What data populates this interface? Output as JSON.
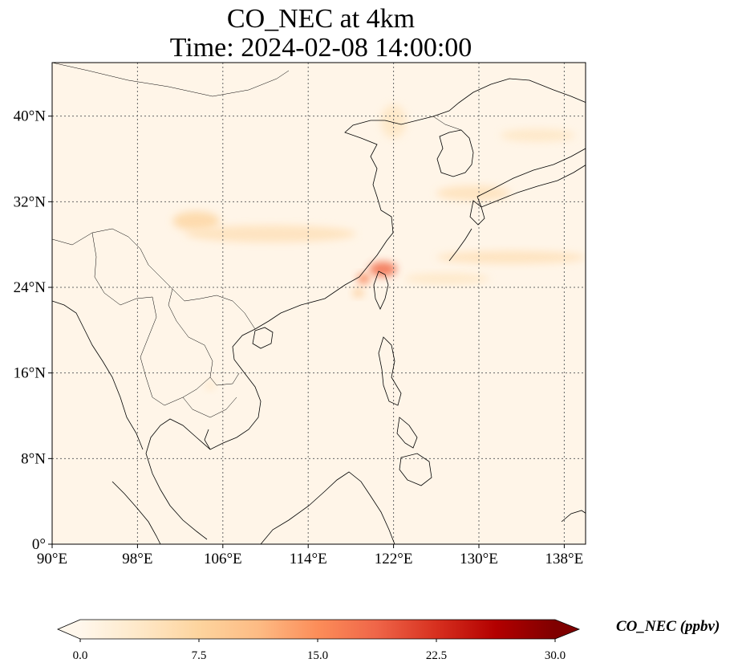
{
  "title": {
    "line1": "CO_NEC at 4km",
    "line2": "Time: 2024-02-08 14:00:00"
  },
  "map": {
    "extent": {
      "lon_min": 90,
      "lon_max": 140,
      "lat_min": 0,
      "lat_max": 45
    },
    "lon_ticks": [
      90,
      98,
      106,
      114,
      122,
      130,
      138
    ],
    "lon_tick_labels": [
      "90°E",
      "98°E",
      "106°E",
      "114°E",
      "122°E",
      "130°E",
      "138°E"
    ],
    "lat_ticks": [
      0,
      8,
      16,
      24,
      32,
      40
    ],
    "lat_tick_labels": [
      "0°",
      "8°N",
      "16°N",
      "24°N",
      "32°N",
      "40°N"
    ],
    "gridlines": true,
    "colors": {
      "background": "#fff5e8",
      "coast": "#000000",
      "border": "#000000",
      "grid": "#666666"
    }
  },
  "colorbar": {
    "label": "CO_NEC (ppbv)",
    "colormap": "OrRd",
    "range": [
      0,
      30
    ],
    "extend": "both",
    "ticks": [
      0,
      7.5,
      15,
      22.5,
      30
    ],
    "tick_labels": [
      "0.0",
      "7.5",
      "15.0",
      "22.5",
      "30.0"
    ],
    "stops": [
      "#fff7ec",
      "#fee8c8",
      "#fdd49e",
      "#fdbb84",
      "#fc8d59",
      "#ef6548",
      "#d7301f",
      "#b30000",
      "#7f0000"
    ]
  },
  "plumes": [
    {
      "lon": 103.5,
      "lat": 30.2,
      "rx": 2.2,
      "ry": 0.9,
      "value": 7
    },
    {
      "lon": 110.5,
      "lat": 29.0,
      "rx": 8,
      "ry": 0.8,
      "value": 5
    },
    {
      "lon": 121.0,
      "lat": 25.7,
      "rx": 1.3,
      "ry": 0.7,
      "value": 18
    },
    {
      "lon": 119.2,
      "lat": 24.8,
      "rx": 0.6,
      "ry": 0.5,
      "value": 16
    },
    {
      "lon": 118.7,
      "lat": 23.5,
      "rx": 0.5,
      "ry": 0.4,
      "value": 9
    },
    {
      "lon": 122.0,
      "lat": 39.5,
      "rx": 1.2,
      "ry": 1.6,
      "value": 4
    },
    {
      "lon": 129.5,
      "lat": 32.8,
      "rx": 3.5,
      "ry": 0.7,
      "value": 5
    },
    {
      "lon": 135.5,
      "lat": 38.2,
      "rx": 3.5,
      "ry": 0.6,
      "value": 4
    },
    {
      "lon": 133.0,
      "lat": 26.8,
      "rx": 7,
      "ry": 0.6,
      "value": 5
    },
    {
      "lon": 127.0,
      "lat": 24.8,
      "rx": 4,
      "ry": 0.5,
      "value": 4
    },
    {
      "lon": 104.8,
      "lat": 14.8,
      "rx": 0.4,
      "ry": 0.4,
      "value": 4
    }
  ]
}
